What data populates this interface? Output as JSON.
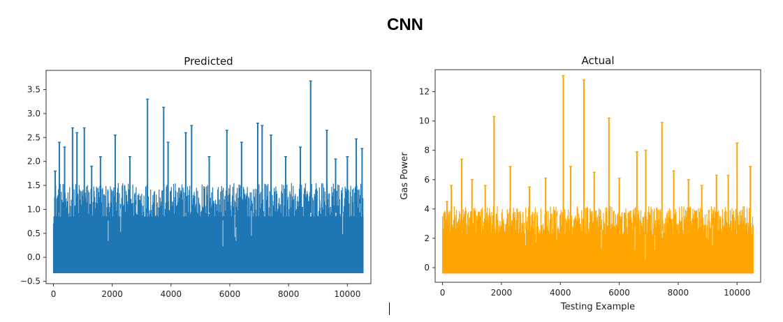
{
  "figure": {
    "title": "CNN"
  },
  "chart_data": [
    {
      "type": "line",
      "title": "Predicted",
      "xlabel": "",
      "ylabel": "",
      "color": "#1f77b4",
      "xlim": [
        -250,
        10800
      ],
      "ylim": [
        -0.55,
        3.9
      ],
      "xticks": [
        0,
        2000,
        4000,
        6000,
        8000,
        10000
      ],
      "yticks": [
        -0.5,
        0.0,
        0.5,
        1.0,
        1.5,
        2.0,
        2.5,
        3.0,
        3.5
      ],
      "ytick_labels": [
        "−0.5",
        "0.0",
        "0.5",
        "1.0",
        "1.5",
        "2.0",
        "2.5",
        "3.0",
        "3.5"
      ],
      "x_range": [
        0,
        10550
      ],
      "baseline": -0.33,
      "typical_max": 1.55,
      "peaks": [
        {
          "x": 60,
          "y": 1.8
        },
        {
          "x": 200,
          "y": 2.4
        },
        {
          "x": 380,
          "y": 2.3
        },
        {
          "x": 650,
          "y": 2.7
        },
        {
          "x": 800,
          "y": 2.6
        },
        {
          "x": 1050,
          "y": 2.7
        },
        {
          "x": 1300,
          "y": 1.9
        },
        {
          "x": 1600,
          "y": 2.1
        },
        {
          "x": 2100,
          "y": 2.55
        },
        {
          "x": 2600,
          "y": 2.1
        },
        {
          "x": 3200,
          "y": 3.3
        },
        {
          "x": 3750,
          "y": 3.13
        },
        {
          "x": 3900,
          "y": 2.4
        },
        {
          "x": 4500,
          "y": 2.6
        },
        {
          "x": 4700,
          "y": 2.75
        },
        {
          "x": 5300,
          "y": 2.1
        },
        {
          "x": 5900,
          "y": 2.65
        },
        {
          "x": 6400,
          "y": 2.4
        },
        {
          "x": 6950,
          "y": 2.8
        },
        {
          "x": 7100,
          "y": 2.75
        },
        {
          "x": 7400,
          "y": 2.55
        },
        {
          "x": 7900,
          "y": 2.1
        },
        {
          "x": 8400,
          "y": 2.3
        },
        {
          "x": 8750,
          "y": 3.68
        },
        {
          "x": 9300,
          "y": 2.65
        },
        {
          "x": 9600,
          "y": 2.05
        },
        {
          "x": 10000,
          "y": 2.1
        },
        {
          "x": 10300,
          "y": 2.47
        },
        {
          "x": 10500,
          "y": 2.27
        }
      ]
    },
    {
      "type": "line",
      "title": "Actual",
      "xlabel": "Testing Example",
      "ylabel": "Gas Power",
      "color": "#ffa500",
      "xlim": [
        -250,
        10800
      ],
      "ylim": [
        -1.0,
        13.5
      ],
      "xticks": [
        0,
        2000,
        4000,
        6000,
        8000,
        10000
      ],
      "yticks": [
        0,
        2,
        4,
        6,
        8,
        10,
        12
      ],
      "ytick_labels": [
        "0",
        "2",
        "4",
        "6",
        "8",
        "10",
        "12"
      ],
      "x_range": [
        0,
        10550
      ],
      "baseline": -0.4,
      "typical_max": 4.2,
      "peaks": [
        {
          "x": 150,
          "y": 4.5
        },
        {
          "x": 300,
          "y": 5.6
        },
        {
          "x": 650,
          "y": 7.4
        },
        {
          "x": 1000,
          "y": 6.0
        },
        {
          "x": 1450,
          "y": 5.6
        },
        {
          "x": 1750,
          "y": 10.3
        },
        {
          "x": 2300,
          "y": 6.9
        },
        {
          "x": 2950,
          "y": 5.5
        },
        {
          "x": 3500,
          "y": 6.1
        },
        {
          "x": 4100,
          "y": 13.1
        },
        {
          "x": 4350,
          "y": 6.9
        },
        {
          "x": 4800,
          "y": 12.8
        },
        {
          "x": 5150,
          "y": 6.5
        },
        {
          "x": 5650,
          "y": 10.2
        },
        {
          "x": 6000,
          "y": 6.1
        },
        {
          "x": 6600,
          "y": 7.9
        },
        {
          "x": 6900,
          "y": 8.0
        },
        {
          "x": 7450,
          "y": 9.9
        },
        {
          "x": 7850,
          "y": 6.6
        },
        {
          "x": 8350,
          "y": 6.0
        },
        {
          "x": 8800,
          "y": 5.6
        },
        {
          "x": 9300,
          "y": 6.3
        },
        {
          "x": 9700,
          "y": 6.3
        },
        {
          "x": 10000,
          "y": 8.5
        },
        {
          "x": 10450,
          "y": 6.9
        }
      ]
    }
  ]
}
